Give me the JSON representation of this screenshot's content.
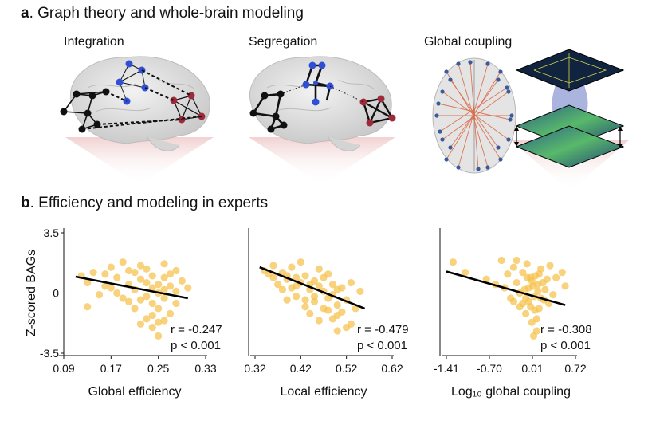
{
  "section_a": {
    "letter": "a",
    "title": ". Graph theory and whole-brain modeling"
  },
  "section_b": {
    "letter": "b",
    "title": ". Efficiency and modeling in experts"
  },
  "panels": [
    "Integration",
    "Segregation",
    "Global coupling"
  ],
  "colors": {
    "scatter_point": "#f5c04a",
    "regression_line": "#000000",
    "node_black": "#111111",
    "node_blue": "#2f4fd4",
    "node_red": "#9c2a3a",
    "plate_blue": "#2b4aa8",
    "brain_gray": "#d9d9d9",
    "edge_orange": "#d9623b"
  },
  "chart_data": [
    {
      "type": "scatter",
      "xlabel": "Global efficiency",
      "ylabel": "Z-scored BAGs",
      "xlim": [
        0.09,
        0.33
      ],
      "ylim": [
        -3.5,
        3.5
      ],
      "xticks": [
        "0.09",
        "0.17",
        "0.25",
        "0.33"
      ],
      "yticks": [
        "3.5",
        "0",
        "-3.5"
      ],
      "stats": {
        "r": "r = -0.247",
        "p": "p < 0.001"
      },
      "fit_line": [
        [
          0.11,
          0.95
        ],
        [
          0.3,
          -0.3
        ]
      ],
      "points": [
        [
          0.12,
          1.0
        ],
        [
          0.13,
          0.6
        ],
        [
          0.14,
          1.2
        ],
        [
          0.15,
          -0.1
        ],
        [
          0.13,
          -0.8
        ],
        [
          0.16,
          0.4
        ],
        [
          0.17,
          1.5
        ],
        [
          0.18,
          0.9
        ],
        [
          0.18,
          0.0
        ],
        [
          0.19,
          1.8
        ],
        [
          0.2,
          0.5
        ],
        [
          0.2,
          -0.5
        ],
        [
          0.21,
          1.2
        ],
        [
          0.21,
          0.2
        ],
        [
          0.22,
          -0.4
        ],
        [
          0.22,
          1.6
        ],
        [
          0.23,
          -1.5
        ],
        [
          0.23,
          0.6
        ],
        [
          0.24,
          -2.0
        ],
        [
          0.24,
          0.3
        ],
        [
          0.24,
          1.0
        ],
        [
          0.25,
          -0.9
        ],
        [
          0.25,
          -1.7
        ],
        [
          0.25,
          0.0
        ],
        [
          0.26,
          1.7
        ],
        [
          0.26,
          -0.3
        ],
        [
          0.26,
          0.9
        ],
        [
          0.27,
          0.4
        ],
        [
          0.27,
          -1.2
        ],
        [
          0.28,
          1.3
        ],
        [
          0.28,
          -0.6
        ],
        [
          0.29,
          0.7
        ],
        [
          0.3,
          0.3
        ],
        [
          0.23,
          -0.2
        ],
        [
          0.24,
          -0.6
        ],
        [
          0.25,
          0.5
        ],
        [
          0.26,
          0.2
        ],
        [
          0.27,
          1.1
        ],
        [
          0.28,
          0.1
        ],
        [
          0.19,
          -0.3
        ],
        [
          0.21,
          -0.9
        ],
        [
          0.22,
          0.8
        ],
        [
          0.17,
          0.3
        ],
        [
          0.16,
          1.1
        ],
        [
          0.24,
          -1.3
        ],
        [
          0.25,
          -2.5
        ],
        [
          0.22,
          -1.8
        ],
        [
          0.23,
          1.4
        ],
        [
          0.26,
          -1.6
        ],
        [
          0.2,
          1.3
        ]
      ]
    },
    {
      "type": "scatter",
      "xlabel": "Local efficiency",
      "ylabel": "",
      "xlim": [
        0.32,
        0.62
      ],
      "ylim": [
        -3.5,
        3.5
      ],
      "xticks": [
        "0.32",
        "0.42",
        "0.52",
        "0.62"
      ],
      "yticks": [],
      "stats": {
        "r": "r = -0.479",
        "p": "p < 0.001"
      },
      "fit_line": [
        [
          0.33,
          1.5
        ],
        [
          0.56,
          -0.9
        ]
      ],
      "points": [
        [
          0.34,
          1.3
        ],
        [
          0.35,
          1.1
        ],
        [
          0.36,
          0.9
        ],
        [
          0.36,
          1.6
        ],
        [
          0.37,
          0.5
        ],
        [
          0.38,
          1.2
        ],
        [
          0.38,
          0.2
        ],
        [
          0.39,
          0.8
        ],
        [
          0.39,
          -0.4
        ],
        [
          0.4,
          1.5
        ],
        [
          0.4,
          0.3
        ],
        [
          0.41,
          0.9
        ],
        [
          0.41,
          -0.2
        ],
        [
          0.42,
          1.8
        ],
        [
          0.42,
          0.6
        ],
        [
          0.43,
          -0.8
        ],
        [
          0.43,
          1.0
        ],
        [
          0.44,
          0.2
        ],
        [
          0.44,
          -1.2
        ],
        [
          0.45,
          0.7
        ],
        [
          0.45,
          -0.5
        ],
        [
          0.46,
          1.4
        ],
        [
          0.46,
          -1.6
        ],
        [
          0.47,
          0.1
        ],
        [
          0.47,
          -0.9
        ],
        [
          0.48,
          1.1
        ],
        [
          0.48,
          -0.3
        ],
        [
          0.49,
          -1.5
        ],
        [
          0.49,
          0.5
        ],
        [
          0.5,
          -0.7
        ],
        [
          0.5,
          -2.2
        ],
        [
          0.51,
          0.3
        ],
        [
          0.51,
          -1.1
        ],
        [
          0.52,
          -0.4
        ],
        [
          0.53,
          0.6
        ],
        [
          0.53,
          -1.8
        ],
        [
          0.54,
          -0.9
        ],
        [
          0.55,
          0.1
        ],
        [
          0.44,
          0.5
        ],
        [
          0.45,
          -0.2
        ],
        [
          0.46,
          0.4
        ],
        [
          0.47,
          0.9
        ],
        [
          0.48,
          -1.0
        ],
        [
          0.49,
          -0.1
        ],
        [
          0.5,
          0.2
        ],
        [
          0.43,
          -0.4
        ],
        [
          0.41,
          0.4
        ],
        [
          0.39,
          1.0
        ],
        [
          0.52,
          -2.0
        ],
        [
          0.5,
          -1.3
        ]
      ]
    },
    {
      "type": "scatter",
      "xlabel": "Log₁₀ global coupling",
      "ylabel": "",
      "xlim": [
        -1.41,
        0.72
      ],
      "ylim": [
        -3.5,
        3.5
      ],
      "xticks": [
        "-1.41",
        "-0.70",
        "0.01",
        "0.72"
      ],
      "yticks": [],
      "stats": {
        "r": "r = -0.308",
        "p": "p < 0.001"
      },
      "fit_line": [
        [
          -1.41,
          1.25
        ],
        [
          0.55,
          -0.7
        ]
      ],
      "points": [
        [
          -1.3,
          1.8
        ],
        [
          -1.1,
          1.2
        ],
        [
          -0.75,
          0.8
        ],
        [
          -0.6,
          0.5
        ],
        [
          -0.5,
          1.9
        ],
        [
          -0.45,
          0.3
        ],
        [
          -0.4,
          1.1
        ],
        [
          -0.35,
          -0.3
        ],
        [
          -0.3,
          1.5
        ],
        [
          -0.25,
          0.6
        ],
        [
          -0.2,
          -0.8
        ],
        [
          -0.15,
          1.2
        ],
        [
          -0.12,
          0.2
        ],
        [
          -0.1,
          -1.2
        ],
        [
          -0.08,
          1.7
        ],
        [
          -0.05,
          -0.5
        ],
        [
          -0.02,
          0.9
        ],
        [
          0.0,
          -1.7
        ],
        [
          0.02,
          0.4
        ],
        [
          0.04,
          -0.2
        ],
        [
          0.06,
          1.0
        ],
        [
          0.08,
          -2.2
        ],
        [
          0.1,
          0.1
        ],
        [
          0.12,
          -0.9
        ],
        [
          0.15,
          1.4
        ],
        [
          0.18,
          0.6
        ],
        [
          0.2,
          -0.4
        ],
        [
          0.25,
          0.8
        ],
        [
          0.3,
          1.6
        ],
        [
          0.35,
          -0.1
        ],
        [
          0.4,
          0.9
        ],
        [
          0.5,
          1.2
        ],
        [
          0.55,
          0.4
        ],
        [
          -0.05,
          0.3
        ],
        [
          0.0,
          0.7
        ],
        [
          -0.1,
          -0.3
        ],
        [
          0.05,
          -1.0
        ],
        [
          -0.2,
          0.0
        ],
        [
          0.1,
          0.5
        ],
        [
          -0.15,
          -0.6
        ],
        [
          0.08,
          -1.5
        ],
        [
          0.03,
          -2.5
        ],
        [
          -0.25,
          1.9
        ],
        [
          0.22,
          0.2
        ],
        [
          -0.3,
          -0.5
        ],
        [
          0.28,
          -0.6
        ],
        [
          -0.08,
          0.9
        ],
        [
          0.15,
          -0.3
        ],
        [
          -0.02,
          -0.8
        ],
        [
          0.12,
          1.1
        ]
      ]
    }
  ]
}
